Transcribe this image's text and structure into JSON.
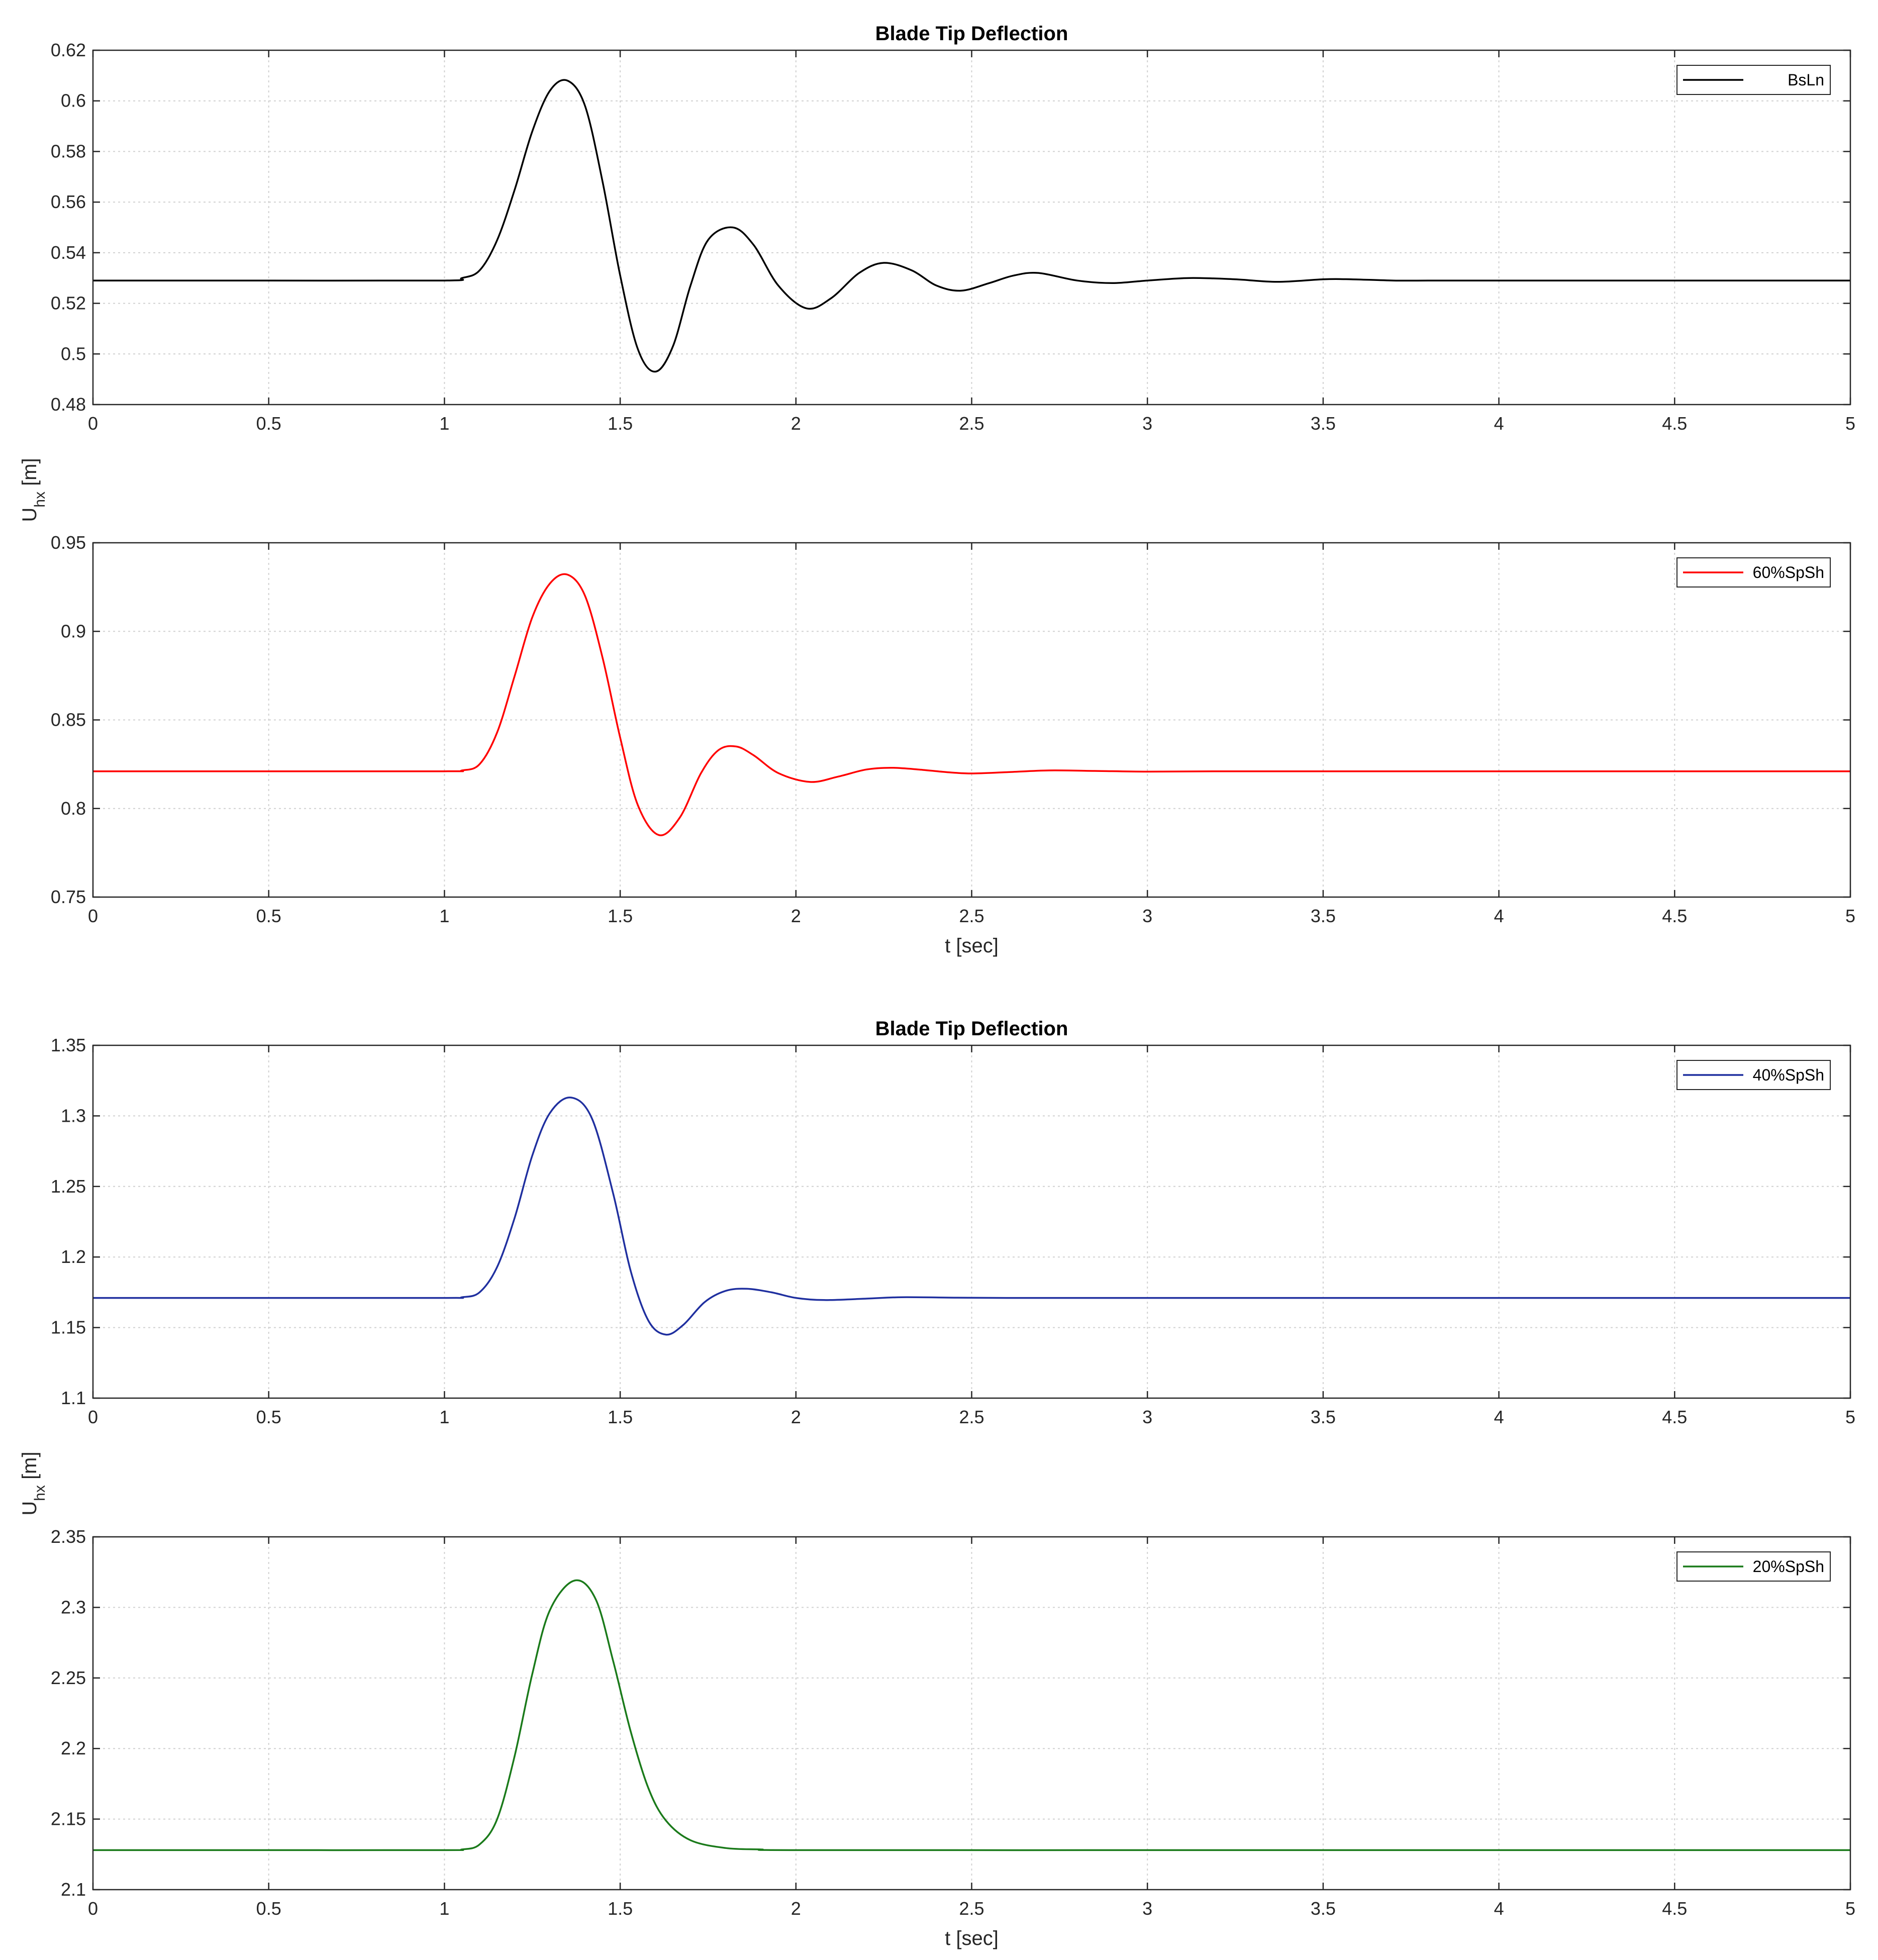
{
  "chart_data": [
    {
      "type": "line",
      "title": "Blade Tip Deflection",
      "xlabel": "",
      "ylabel": "",
      "xlim": [
        0,
        5
      ],
      "ylim": [
        0.48,
        0.62
      ],
      "xticks": [
        "0",
        "0.5",
        "1",
        "1.5",
        "2",
        "2.5",
        "3",
        "3.5",
        "4",
        "4.5",
        "5"
      ],
      "yticks": [
        "0.48",
        "0.5",
        "0.52",
        "0.54",
        "0.56",
        "0.58",
        "0.6",
        "0.62"
      ],
      "grid": true,
      "legend_position": "top-right",
      "series": [
        {
          "name": "BsLn",
          "color": "#000000",
          "x": [
            0,
            0.5,
            1.0,
            1.05,
            1.1,
            1.15,
            1.2,
            1.25,
            1.3,
            1.35,
            1.4,
            1.45,
            1.5,
            1.55,
            1.6,
            1.65,
            1.7,
            1.75,
            1.82,
            1.88,
            1.95,
            2.03,
            2.1,
            2.18,
            2.25,
            2.33,
            2.4,
            2.47,
            2.55,
            2.62,
            2.69,
            2.8,
            2.9,
            3.0,
            3.12,
            3.25,
            3.37,
            3.5,
            3.58,
            3.7,
            3.8,
            4.0,
            4.5,
            5.0
          ],
          "y": [
            0.529,
            0.529,
            0.529,
            0.53,
            0.533,
            0.545,
            0.565,
            0.588,
            0.604,
            0.608,
            0.598,
            0.568,
            0.531,
            0.502,
            0.493,
            0.503,
            0.527,
            0.545,
            0.55,
            0.543,
            0.527,
            0.518,
            0.522,
            0.532,
            0.536,
            0.533,
            0.527,
            0.525,
            0.528,
            0.531,
            0.532,
            0.529,
            0.528,
            0.529,
            0.53,
            0.5295,
            0.5285,
            0.5295,
            0.5295,
            0.529,
            0.529,
            0.529,
            0.529,
            0.529
          ]
        }
      ]
    },
    {
      "type": "line",
      "title": "",
      "xlabel": "t [sec]",
      "ylabel": "",
      "xlim": [
        0,
        5
      ],
      "ylim": [
        0.75,
        0.95
      ],
      "xticks": [
        "0",
        "0.5",
        "1",
        "1.5",
        "2",
        "2.5",
        "3",
        "3.5",
        "4",
        "4.5",
        "5"
      ],
      "yticks": [
        "0.75",
        "0.8",
        "0.85",
        "0.9",
        "0.95"
      ],
      "grid": true,
      "legend_position": "top-right",
      "series": [
        {
          "name": "60%SpSh",
          "color": "#ff0000",
          "x": [
            0,
            0.5,
            1.0,
            1.05,
            1.1,
            1.15,
            1.2,
            1.25,
            1.3,
            1.35,
            1.4,
            1.45,
            1.5,
            1.55,
            1.61,
            1.67,
            1.73,
            1.78,
            1.83,
            1.88,
            1.95,
            2.04,
            2.12,
            2.2,
            2.27,
            2.35,
            2.43,
            2.5,
            2.6,
            2.72,
            2.85,
            3.0,
            3.2,
            3.5,
            4.0,
            5.0
          ],
          "y": [
            0.821,
            0.821,
            0.821,
            0.8215,
            0.825,
            0.843,
            0.875,
            0.908,
            0.927,
            0.932,
            0.92,
            0.885,
            0.84,
            0.802,
            0.785,
            0.795,
            0.82,
            0.833,
            0.835,
            0.83,
            0.82,
            0.815,
            0.818,
            0.822,
            0.823,
            0.822,
            0.8205,
            0.8198,
            0.8205,
            0.8215,
            0.8212,
            0.8208,
            0.821,
            0.821,
            0.821,
            0.821
          ]
        }
      ]
    },
    {
      "type": "line",
      "title": "Blade Tip Deflection",
      "xlabel": "",
      "ylabel": "",
      "xlim": [
        0,
        5
      ],
      "ylim": [
        1.1,
        1.35
      ],
      "xticks": [
        "0",
        "0.5",
        "1",
        "1.5",
        "2",
        "2.5",
        "3",
        "3.5",
        "4",
        "4.5",
        "5"
      ],
      "yticks": [
        "1.1",
        "1.15",
        "1.2",
        "1.25",
        "1.3",
        "1.35"
      ],
      "grid": true,
      "legend_position": "top-right",
      "series": [
        {
          "name": "40%SpSh",
          "color": "#1f2f9f",
          "x": [
            0,
            0.5,
            1.0,
            1.05,
            1.1,
            1.15,
            1.2,
            1.25,
            1.3,
            1.36,
            1.42,
            1.48,
            1.53,
            1.58,
            1.63,
            1.68,
            1.74,
            1.8,
            1.86,
            1.93,
            2.0,
            2.08,
            2.2,
            2.3,
            2.45,
            2.6,
            3.0,
            4.0,
            5.0
          ],
          "y": [
            1.171,
            1.171,
            1.171,
            1.1715,
            1.175,
            1.193,
            1.228,
            1.272,
            1.302,
            1.313,
            1.298,
            1.245,
            1.19,
            1.155,
            1.145,
            1.152,
            1.168,
            1.176,
            1.1775,
            1.175,
            1.171,
            1.1695,
            1.1705,
            1.1715,
            1.1712,
            1.171,
            1.171,
            1.171,
            1.171
          ]
        }
      ]
    },
    {
      "type": "line",
      "title": "",
      "xlabel": "t [sec]",
      "ylabel": "",
      "xlim": [
        0,
        5
      ],
      "ylim": [
        2.1,
        2.35
      ],
      "xticks": [
        "0",
        "0.5",
        "1",
        "1.5",
        "2",
        "2.5",
        "3",
        "3.5",
        "4",
        "4.5",
        "5"
      ],
      "yticks": [
        "2.1",
        "2.15",
        "2.2",
        "2.25",
        "2.3",
        "2.35"
      ],
      "grid": true,
      "legend_position": "top-right",
      "series": [
        {
          "name": "20%SpSh",
          "color": "#1a7a1a",
          "x": [
            0,
            0.5,
            1.0,
            1.05,
            1.1,
            1.15,
            1.2,
            1.25,
            1.3,
            1.37,
            1.43,
            1.48,
            1.53,
            1.58,
            1.63,
            1.7,
            1.8,
            1.9,
            2.0,
            3.0,
            4.0,
            5.0
          ],
          "y": [
            2.128,
            2.128,
            2.128,
            2.1285,
            2.132,
            2.15,
            2.195,
            2.253,
            2.298,
            2.319,
            2.306,
            2.262,
            2.212,
            2.172,
            2.149,
            2.135,
            2.1295,
            2.1285,
            2.128,
            2.128,
            2.128,
            2.128
          ]
        }
      ]
    }
  ],
  "axis_labels": {
    "upper_ylabel_main": "U",
    "upper_ylabel_sub": "hx",
    "upper_ylabel_unit": " [m]",
    "lower_ylabel_main": "U",
    "lower_ylabel_sub": "hx",
    "lower_ylabel_unit": " [m]"
  }
}
